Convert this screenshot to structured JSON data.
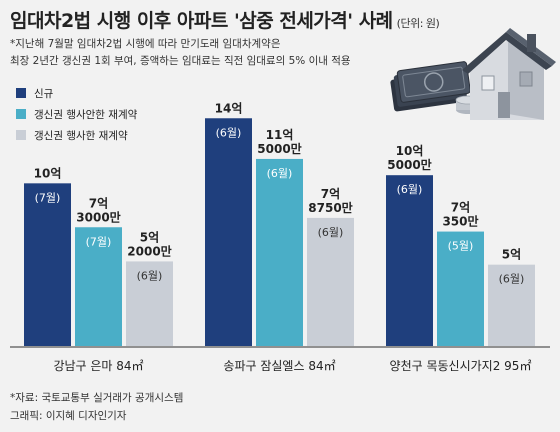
{
  "title": "임대차2법 시행 이후 아파트 '삼중 전세가격' 사례",
  "unit": "(단위: 원)",
  "notes": [
    "*지난해 7월말 임대차2법 시행에 따라 만기도래 임대차계약은",
    "최장 2년간 갱신권 1회 부여, 증액하는 임대료는 직전 임대료의 5% 이내 적용"
  ],
  "footer": {
    "source": "*자료: 국토교통부 실거래가 공개시스템",
    "credit": "그래픽: 이지혜 디자인기자"
  },
  "colors": {
    "new": "#1f3f7d",
    "renew_without_right": "#4aaec7",
    "renew_with_right": "#c9ced6"
  },
  "icon": "house-with-money-icon",
  "chart_data": {
    "type": "bar",
    "title": "임대차2법 시행 이후 아파트 '삼중 전세가격' 사례",
    "ylabel": "",
    "ylim": [
      0,
      150000
    ],
    "grid": false,
    "legend": "top-left",
    "categories": [
      "강남구 은마 84㎡",
      "송파구 잠실엘스 84㎡",
      "양천구 목동신시가지2 95㎡"
    ],
    "series": [
      {
        "name": "신규",
        "values": [
          100000,
          140000,
          105000
        ],
        "labels": [
          "10억",
          "14억",
          "10억\n5000만"
        ],
        "months": [
          "(7월)",
          "(6월)",
          "(6월)"
        ]
      },
      {
        "name": "갱신권 행사안한 재계약",
        "values": [
          73000,
          115000,
          70350
        ],
        "labels": [
          "7억\n3000만",
          "11억\n5000만",
          "7억\n350만"
        ],
        "months": [
          "(7월)",
          "(6월)",
          "(5월)"
        ]
      },
      {
        "name": "갱신권 행사한 재계약",
        "values": [
          52000,
          78750,
          50000
        ],
        "labels": [
          "5억\n2000만",
          "7억\n8750만",
          "5억"
        ],
        "months": [
          "(6월)",
          "(6월)",
          "(6월)"
        ]
      }
    ]
  }
}
